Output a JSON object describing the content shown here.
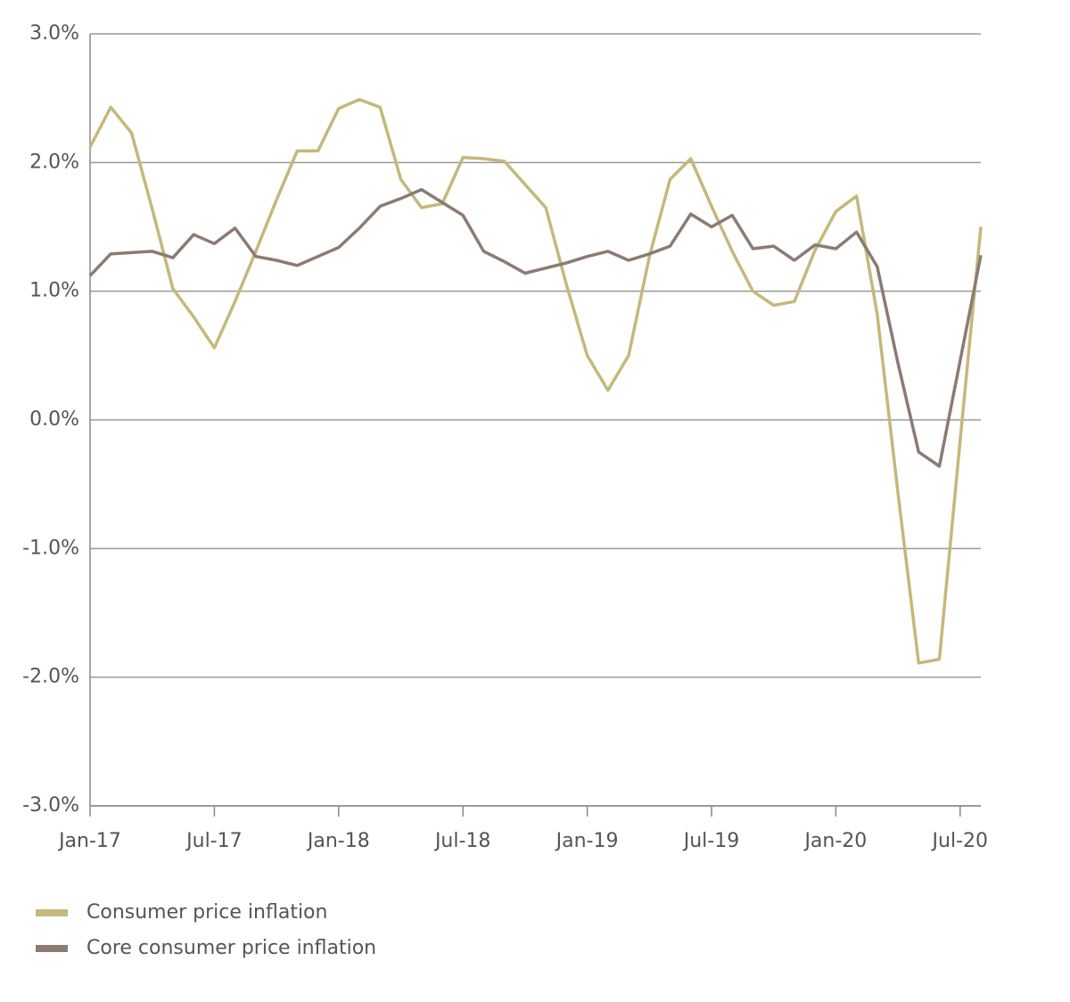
{
  "chart_data": {
    "type": "line",
    "categories": [
      "Jan-17",
      null,
      null,
      null,
      null,
      null,
      "Jul-17",
      null,
      null,
      null,
      null,
      null,
      "Jan-18",
      null,
      null,
      null,
      null,
      null,
      "Jul-18",
      null,
      null,
      null,
      null,
      null,
      "Jan-19",
      null,
      null,
      null,
      null,
      null,
      "Jul-19",
      null,
      null,
      null,
      null,
      null,
      "Jan-20",
      null,
      null,
      null,
      null,
      null,
      "Jul-20",
      null
    ],
    "series": [
      {
        "name": "Consumer price inflation",
        "color": "#c5b87a",
        "values": [
          2.12,
          2.43,
          2.23,
          1.64,
          1.02,
          0.8,
          0.56,
          0.92,
          1.31,
          1.71,
          2.09,
          2.09,
          2.42,
          2.49,
          2.43,
          1.87,
          1.65,
          1.68,
          2.04,
          2.03,
          2.01,
          1.83,
          1.65,
          1.05,
          0.5,
          0.23,
          0.5,
          1.27,
          1.87,
          2.03,
          1.66,
          1.31,
          1.0,
          0.89,
          0.92,
          1.32,
          1.62,
          1.74,
          0.82,
          -0.57,
          -1.89,
          -1.86,
          -0.16,
          1.5
        ]
      },
      {
        "name": "Core consumer price inflation",
        "color": "#8c7b73",
        "values": [
          1.12,
          1.29,
          1.3,
          1.31,
          1.26,
          1.44,
          1.37,
          1.49,
          1.27,
          1.24,
          1.2,
          1.27,
          1.34,
          1.49,
          1.66,
          1.72,
          1.79,
          1.69,
          1.59,
          1.31,
          1.23,
          1.14,
          1.18,
          1.22,
          1.27,
          1.31,
          1.24,
          1.29,
          1.35,
          1.6,
          1.5,
          1.59,
          1.33,
          1.35,
          1.24,
          1.36,
          1.33,
          1.46,
          1.19,
          0.44,
          -0.25,
          -0.36,
          0.46,
          1.28
        ]
      }
    ],
    "ylim": [
      -3,
      3
    ],
    "yticks": [
      {
        "value": -3,
        "label": "-3.0%"
      },
      {
        "value": -2,
        "label": "-2.0%"
      },
      {
        "value": -1,
        "label": "-1.0%"
      },
      {
        "value": 0,
        "label": "0.0%"
      },
      {
        "value": 1,
        "label": "1.0%"
      },
      {
        "value": 2,
        "label": "2.0%"
      },
      {
        "value": 3,
        "label": "3.0%"
      }
    ],
    "grid": true,
    "legend": "bottom"
  }
}
